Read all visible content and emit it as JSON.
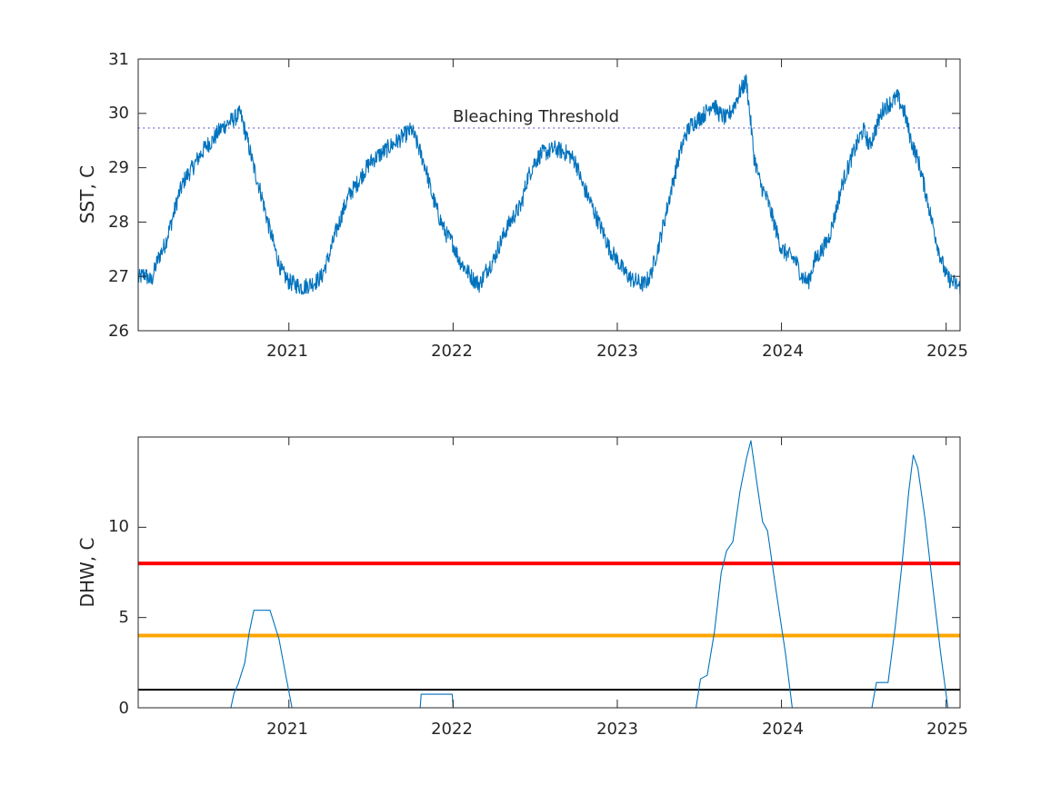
{
  "chart_data": [
    {
      "type": "line",
      "ylabel": "SST, C",
      "xlabel": "",
      "title": "",
      "xlim": [
        "2020-02-01",
        "2025-02-01"
      ],
      "ylim": [
        26,
        31
      ],
      "xticks": [
        "2021",
        "2022",
        "2023",
        "2024",
        "2025"
      ],
      "yticks": [
        "26",
        "27",
        "28",
        "29",
        "30",
        "31"
      ],
      "grid": false,
      "annotations": [
        {
          "text": "Bleaching Threshold",
          "x": "2022-01-01",
          "y": 29.92
        }
      ],
      "threshold_lines": [
        {
          "y": 29.73,
          "style": "dotted",
          "color": "#3c3cc8"
        }
      ],
      "series": [
        {
          "color": "#0072bd",
          "points": [
            [
              "2020-02-01",
              26.95
            ],
            [
              "2020-02-15",
              27.05
            ],
            [
              "2020-03-01",
              26.9
            ],
            [
              "2020-03-15",
              27.3
            ],
            [
              "2020-04-01",
              27.6
            ],
            [
              "2020-04-15",
              28.0
            ],
            [
              "2020-05-01",
              28.5
            ],
            [
              "2020-05-15",
              28.8
            ],
            [
              "2020-06-01",
              29.0
            ],
            [
              "2020-06-15",
              29.2
            ],
            [
              "2020-07-01",
              29.4
            ],
            [
              "2020-07-15",
              29.5
            ],
            [
              "2020-08-01",
              29.7
            ],
            [
              "2020-08-15",
              29.8
            ],
            [
              "2020-09-01",
              29.9
            ],
            [
              "2020-09-15",
              30.0
            ],
            [
              "2020-10-01",
              29.5
            ],
            [
              "2020-10-15",
              29.0
            ],
            [
              "2020-11-01",
              28.5
            ],
            [
              "2020-11-15",
              28.0
            ],
            [
              "2020-12-01",
              27.5
            ],
            [
              "2020-12-15",
              27.1
            ],
            [
              "2021-01-01",
              26.9
            ],
            [
              "2021-01-15",
              26.85
            ],
            [
              "2021-02-01",
              26.8
            ],
            [
              "2021-02-15",
              26.85
            ],
            [
              "2021-03-01",
              26.9
            ],
            [
              "2021-03-15",
              27.0
            ],
            [
              "2021-04-01",
              27.4
            ],
            [
              "2021-04-15",
              27.8
            ],
            [
              "2021-05-01",
              28.2
            ],
            [
              "2021-05-15",
              28.5
            ],
            [
              "2021-06-01",
              28.7
            ],
            [
              "2021-06-15",
              28.9
            ],
            [
              "2021-07-01",
              29.1
            ],
            [
              "2021-07-15",
              29.2
            ],
            [
              "2021-08-01",
              29.3
            ],
            [
              "2021-08-15",
              29.4
            ],
            [
              "2021-09-01",
              29.5
            ],
            [
              "2021-09-15",
              29.6
            ],
            [
              "2021-10-01",
              29.7
            ],
            [
              "2021-10-15",
              29.4
            ],
            [
              "2021-11-01",
              29.0
            ],
            [
              "2021-11-15",
              28.5
            ],
            [
              "2021-12-01",
              28.1
            ],
            [
              "2021-12-15",
              27.8
            ],
            [
              "2022-01-01",
              27.6
            ],
            [
              "2022-01-15",
              27.3
            ],
            [
              "2022-02-01",
              27.1
            ],
            [
              "2022-02-15",
              26.95
            ],
            [
              "2022-03-01",
              26.85
            ],
            [
              "2022-03-15",
              27.1
            ],
            [
              "2022-04-01",
              27.3
            ],
            [
              "2022-04-15",
              27.6
            ],
            [
              "2022-05-01",
              27.9
            ],
            [
              "2022-05-15",
              28.1
            ],
            [
              "2022-06-01",
              28.3
            ],
            [
              "2022-06-15",
              28.8
            ],
            [
              "2022-07-01",
              29.1
            ],
            [
              "2022-07-15",
              29.25
            ],
            [
              "2022-08-01",
              29.3
            ],
            [
              "2022-08-15",
              29.35
            ],
            [
              "2022-09-01",
              29.3
            ],
            [
              "2022-09-15",
              29.25
            ],
            [
              "2022-10-01",
              29.1
            ],
            [
              "2022-10-15",
              28.7
            ],
            [
              "2022-11-01",
              28.4
            ],
            [
              "2022-11-15",
              28.1
            ],
            [
              "2022-12-01",
              27.8
            ],
            [
              "2022-12-15",
              27.5
            ],
            [
              "2023-01-01",
              27.3
            ],
            [
              "2023-01-15",
              27.1
            ],
            [
              "2023-02-01",
              26.95
            ],
            [
              "2023-02-15",
              26.9
            ],
            [
              "2023-03-01",
              26.85
            ],
            [
              "2023-03-15",
              27.0
            ],
            [
              "2023-04-01",
              27.5
            ],
            [
              "2023-04-15",
              28.0
            ],
            [
              "2023-05-01",
              28.6
            ],
            [
              "2023-05-15",
              29.1
            ],
            [
              "2023-06-01",
              29.6
            ],
            [
              "2023-06-15",
              29.8
            ],
            [
              "2023-07-01",
              29.9
            ],
            [
              "2023-07-15",
              30.0
            ],
            [
              "2023-08-01",
              30.2
            ],
            [
              "2023-08-15",
              30.0
            ],
            [
              "2023-09-01",
              29.9
            ],
            [
              "2023-09-15",
              30.1
            ],
            [
              "2023-10-01",
              30.4
            ],
            [
              "2023-10-15",
              30.6
            ],
            [
              "2023-10-25",
              29.8
            ],
            [
              "2023-11-01",
              29.2
            ],
            [
              "2023-11-15",
              28.7
            ],
            [
              "2023-12-01",
              28.4
            ],
            [
              "2023-12-15",
              28.0
            ],
            [
              "2024-01-01",
              27.5
            ],
            [
              "2024-01-15",
              27.4
            ],
            [
              "2024-02-01",
              27.3
            ],
            [
              "2024-02-15",
              27.0
            ],
            [
              "2024-03-01",
              26.9
            ],
            [
              "2024-03-15",
              27.3
            ],
            [
              "2024-04-01",
              27.5
            ],
            [
              "2024-04-15",
              27.7
            ],
            [
              "2024-05-01",
              28.2
            ],
            [
              "2024-05-15",
              28.7
            ],
            [
              "2024-06-01",
              29.1
            ],
            [
              "2024-06-15",
              29.4
            ],
            [
              "2024-07-01",
              29.7
            ],
            [
              "2024-07-15",
              29.4
            ],
            [
              "2024-08-01",
              29.8
            ],
            [
              "2024-08-15",
              30.1
            ],
            [
              "2024-09-01",
              30.2
            ],
            [
              "2024-09-15",
              30.3
            ],
            [
              "2024-10-01",
              30.0
            ],
            [
              "2024-10-15",
              29.5
            ],
            [
              "2024-11-01",
              29.1
            ],
            [
              "2024-11-15",
              28.6
            ],
            [
              "2024-12-01",
              28.0
            ],
            [
              "2024-12-15",
              27.5
            ],
            [
              "2025-01-01",
              27.0
            ],
            [
              "2025-01-15",
              26.9
            ],
            [
              "2025-02-01",
              26.8
            ]
          ]
        }
      ]
    },
    {
      "type": "line",
      "ylabel": "DHW, C",
      "xlabel": "",
      "title": "",
      "xlim": [
        "2020-02-01",
        "2025-02-01"
      ],
      "ylim": [
        0,
        15
      ],
      "xticks": [
        "2021",
        "2022",
        "2023",
        "2024",
        "2025"
      ],
      "yticks": [
        "0",
        "5",
        "10"
      ],
      "grid": false,
      "threshold_lines": [
        {
          "y": 8,
          "color": "#ff0000"
        },
        {
          "y": 4,
          "color": "#ffa500"
        },
        {
          "y": 1,
          "color": "#000000"
        }
      ],
      "series": [
        {
          "color": "#0072bd",
          "points": [
            [
              "2020-02-01",
              0
            ],
            [
              "2020-08-25",
              0
            ],
            [
              "2020-09-01",
              0.8
            ],
            [
              "2020-09-10",
              1.3
            ],
            [
              "2020-09-25",
              2.5
            ],
            [
              "2020-10-05",
              4.2
            ],
            [
              "2020-10-15",
              5.4
            ],
            [
              "2020-11-20",
              5.4
            ],
            [
              "2020-12-10",
              3.8
            ],
            [
              "2020-12-25",
              1.8
            ],
            [
              "2021-01-08",
              0
            ],
            [
              "2021-10-20",
              0
            ],
            [
              "2021-10-22",
              0.75
            ],
            [
              "2021-12-30",
              0.75
            ],
            [
              "2022-01-01",
              0
            ],
            [
              "2023-06-25",
              0
            ],
            [
              "2023-07-05",
              1.6
            ],
            [
              "2023-07-20",
              1.8
            ],
            [
              "2023-08-05",
              4.2
            ],
            [
              "2023-08-20",
              7.5
            ],
            [
              "2023-09-01",
              8.7
            ],
            [
              "2023-09-15",
              9.2
            ],
            [
              "2023-10-01",
              12.0
            ],
            [
              "2023-10-15",
              13.8
            ],
            [
              "2023-10-25",
              14.8
            ],
            [
              "2023-11-10",
              12.0
            ],
            [
              "2023-11-20",
              10.3
            ],
            [
              "2023-12-01",
              9.8
            ],
            [
              "2023-12-20",
              6.5
            ],
            [
              "2024-01-10",
              3.0
            ],
            [
              "2024-01-25",
              0
            ],
            [
              "2024-07-20",
              0
            ],
            [
              "2024-07-30",
              1.4
            ],
            [
              "2024-08-25",
              1.4
            ],
            [
              "2024-09-10",
              4.5
            ],
            [
              "2024-09-25",
              8.0
            ],
            [
              "2024-10-10",
              12.0
            ],
            [
              "2024-10-20",
              14.0
            ],
            [
              "2024-10-30",
              13.3
            ],
            [
              "2024-11-15",
              10.5
            ],
            [
              "2024-12-01",
              7.0
            ],
            [
              "2024-12-20",
              3.0
            ],
            [
              "2025-01-05",
              0
            ],
            [
              "2025-02-01",
              0
            ]
          ]
        }
      ]
    }
  ]
}
